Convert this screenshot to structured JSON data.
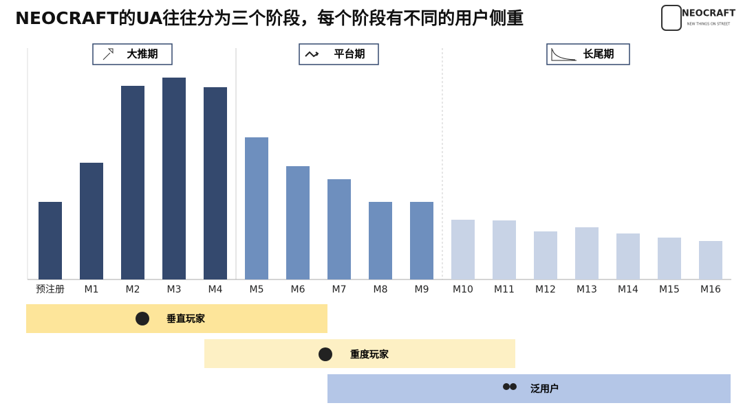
{
  "chart_data": {
    "type": "bar",
    "title": "NEOCRAFT的UA往往分为三个阶段，每个阶段有不同的用户侧重",
    "logo": "NEOCRAFT",
    "tagline": "NEW THINGS ON STREET",
    "categories": [
      "预注册",
      "M1",
      "M2",
      "M3",
      "M4",
      "M5",
      "M6",
      "M7",
      "M8",
      "M9",
      "M10",
      "M11",
      "M12",
      "M13",
      "M14",
      "M15",
      "M16"
    ],
    "values": [
      113,
      170,
      282,
      294,
      280,
      207,
      165,
      146,
      113,
      113,
      87,
      86,
      70,
      76,
      67,
      61,
      56
    ],
    "colors": [
      "#34496e",
      "#34496e",
      "#34496e",
      "#34496e",
      "#34496e",
      "#6e8fbe",
      "#6e8fbe",
      "#6e8fbe",
      "#6e8fbe",
      "#6e8fbe",
      "#c8d3e6",
      "#c8d3e6",
      "#c8d3e6",
      "#c8d3e6",
      "#c8d3e6",
      "#c8d3e6",
      "#c8d3e6"
    ],
    "ylim": [
      0,
      300
    ],
    "phases": [
      "大推期",
      "平台期",
      "长尾期"
    ],
    "segments": [
      "垂直玩家",
      "重度玩家",
      "泛用户"
    ]
  }
}
